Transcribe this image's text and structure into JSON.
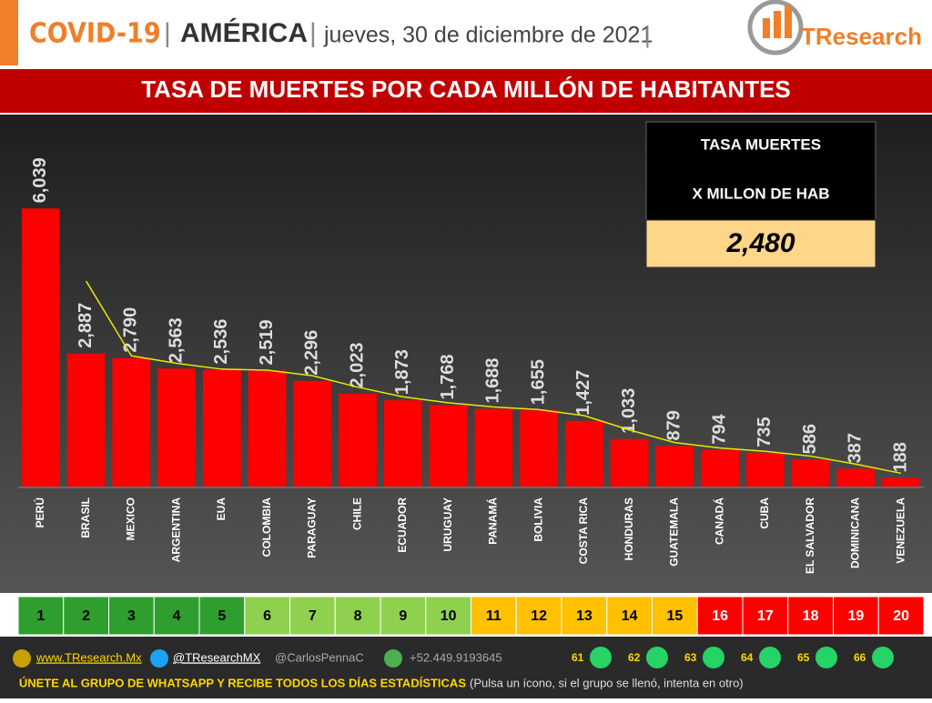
{
  "header": {
    "topic": "COVID-19",
    "region": "AMÉRICA",
    "date": "jueves, 30 de diciembre de 2021",
    "brand": "TResearch"
  },
  "chart_data": {
    "type": "bar",
    "title": "TASA DE MUERTES POR CADA MILLÓN DE HABITANTES",
    "categories": [
      "PERÚ",
      "BRASIL",
      "MEXICO",
      "ARGENTINA",
      "EUA",
      "COLOMBIA",
      "PARAGUAY",
      "CHILE",
      "ECUADOR",
      "URUGUAY",
      "PANAMÁ",
      "BOLIVIA",
      "COSTA RICA",
      "HONDURAS",
      "GUATEMALA",
      "CANADÁ",
      "CUBA",
      "EL SALVADOR",
      "DOMINICANA",
      "VENEZUELA"
    ],
    "values": [
      6039,
      2887,
      2790,
      2563,
      2536,
      2519,
      2296,
      2023,
      1873,
      1768,
      1688,
      1655,
      1427,
      1033,
      879,
      794,
      735,
      586,
      387,
      188
    ],
    "value_labels": [
      "6,039",
      "2,887",
      "2,790",
      "2,563",
      "2,536",
      "2,519",
      "2,296",
      "2,023",
      "1,873",
      "1,768",
      "1,688",
      "1,655",
      "1,427",
      "1,033",
      "879",
      "794",
      "735",
      "586",
      "387",
      "188"
    ],
    "color": "#ff0000",
    "trend": {
      "color": "#e8e800",
      "values": [
        null,
        4463,
        2838.5,
        2676.5,
        2549.5,
        2527.5,
        2407.5,
        2159.5,
        1948,
        1820.5,
        1728,
        1671.5,
        1541,
        1230,
        956,
        836.5,
        764.5,
        660.5,
        486.5,
        287.5
      ]
    },
    "ylim": [
      0,
      8000
    ],
    "summary": {
      "line1": "TASA MUERTES",
      "line2": "X MILLON DE HAB",
      "value": 2480,
      "value_label": "2,480"
    }
  },
  "ranking": {
    "labels": [
      "1",
      "2",
      "3",
      "4",
      "5",
      "6",
      "7",
      "8",
      "9",
      "10",
      "11",
      "12",
      "13",
      "14",
      "15",
      "16",
      "17",
      "18",
      "19",
      "20"
    ],
    "colors": [
      "#2e9e2e",
      "#2e9e2e",
      "#2e9e2e",
      "#2e9e2e",
      "#2e9e2e",
      "#8fd14f",
      "#8fd14f",
      "#8fd14f",
      "#8fd14f",
      "#8fd14f",
      "#ffc000",
      "#ffc000",
      "#ffc000",
      "#ffc000",
      "#ffc000",
      "#ff0000",
      "#ff0000",
      "#ff0000",
      "#ff0000",
      "#ff0000"
    ]
  },
  "footer": {
    "web": "www.TResearch.Mx",
    "twitter": "@TResearchMX",
    "personal": "@CarlosPennaC",
    "phone": "+52.449.9193645",
    "groups": [
      "61",
      "62",
      "63",
      "64",
      "65",
      "66"
    ],
    "cta": "ÚNETE AL GRUPO DE WHATSAPP Y RECIBE TODOS LOS DÍAS ESTADÍSTICAS",
    "note": "(Pulsa un ícono, si el grupo se llenó, intenta en otro)"
  }
}
